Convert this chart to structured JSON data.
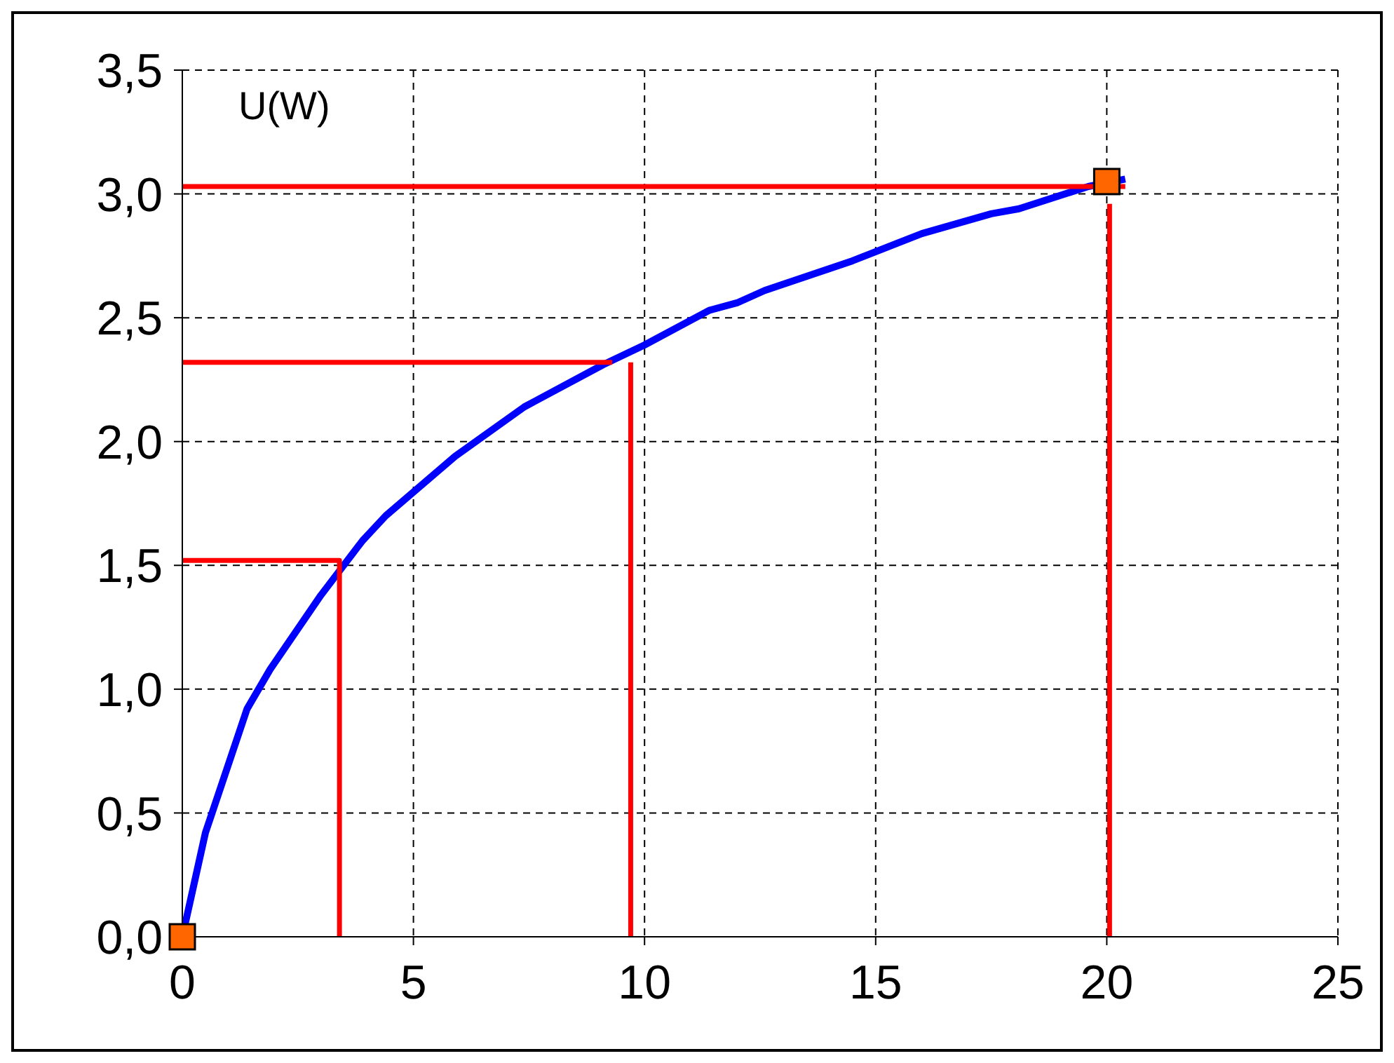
{
  "chart_data": {
    "type": "line",
    "annotations": [
      "U(W)"
    ],
    "xlim": [
      0,
      25
    ],
    "xticks": [
      0,
      5,
      10,
      15,
      20,
      25
    ],
    "ylim": [
      0,
      3.5
    ],
    "yticks": [
      {
        "value": 0,
        "label": "0,0"
      },
      {
        "value": 0.5,
        "label": "0,5"
      },
      {
        "value": 1,
        "label": "1,0"
      },
      {
        "value": 1.5,
        "label": "1,5"
      },
      {
        "value": 2,
        "label": "2,0"
      },
      {
        "value": 2.5,
        "label": "2,5"
      },
      {
        "value": 3,
        "label": "3,0"
      },
      {
        "value": 3.5,
        "label": "3,5"
      }
    ],
    "grid": true,
    "series": [
      {
        "color": "#0000ff",
        "marker": "none",
        "x": [
          0,
          0.5,
          1.4,
          1.9,
          3.0,
          3.9,
          4.4,
          5.9,
          7.4,
          9.1,
          10,
          11.4,
          12,
          12.6,
          14.5,
          16,
          17.5,
          18.1,
          19.6,
          20.4
        ],
        "values": [
          0,
          0.42,
          0.92,
          1.08,
          1.38,
          1.6,
          1.7,
          1.94,
          2.14,
          2.31,
          2.39,
          2.53,
          2.56,
          2.61,
          2.73,
          2.84,
          2.92,
          2.94,
          3.03,
          3.06
        ]
      },
      {
        "color": "#ff0000",
        "marker": "none",
        "x": [
          0,
          3.4,
          3.4
        ],
        "values": [
          1.52,
          1.52,
          0
        ]
      },
      {
        "color": "#ff0000",
        "marker": "none",
        "x": [
          0,
          9.3
        ],
        "values": [
          2.32,
          2.32
        ]
      },
      {
        "color": "#ff0000",
        "marker": "none",
        "x": [
          9.7,
          9.7
        ],
        "values": [
          2.32,
          0
        ]
      },
      {
        "color": "#ff0000",
        "marker": "none",
        "x": [
          0,
          20.4
        ],
        "values": [
          3.03,
          3.03
        ]
      },
      {
        "color": "#ff0000",
        "marker": "none",
        "x": [
          20.06,
          20.06
        ],
        "values": [
          2.96,
          0
        ]
      },
      {
        "type": "scatter",
        "color": "#ff6600",
        "marker": "square",
        "x": [
          0,
          20
        ],
        "values": [
          0,
          3.05
        ]
      }
    ]
  }
}
